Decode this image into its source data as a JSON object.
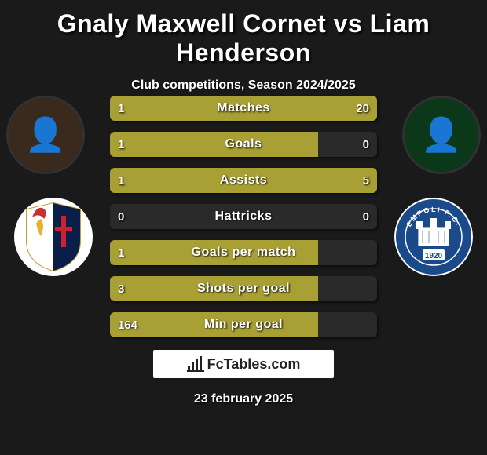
{
  "title": "Gnaly Maxwell Cornet vs Liam Henderson",
  "subtitle": "Club competitions, Season 2024/2025",
  "player_left": {
    "name": "Gnaly Maxwell Cornet",
    "portrait_bg": "#3a2a1e",
    "portrait_glyph": "👤",
    "club_crest_glyph": "genoa"
  },
  "player_right": {
    "name": "Liam Henderson",
    "portrait_bg": "#0a3818",
    "portrait_glyph": "👤",
    "club_crest_bg": "#1a4a8a",
    "club_crest_text": "EMPOLI F.C.",
    "club_crest_year": "1920"
  },
  "bar_color": "#a8a034",
  "track_color": "#2a2a2a",
  "rows": [
    {
      "label": "Matches",
      "left_val": "1",
      "right_val": "20",
      "left_pct": 4.8,
      "right_pct": 95.2
    },
    {
      "label": "Goals",
      "left_val": "1",
      "right_val": "0",
      "left_pct": 78,
      "right_pct": 0
    },
    {
      "label": "Assists",
      "left_val": "1",
      "right_val": "5",
      "left_pct": 16.7,
      "right_pct": 83.3
    },
    {
      "label": "Hattricks",
      "left_val": "0",
      "right_val": "0",
      "left_pct": 0,
      "right_pct": 0
    },
    {
      "label": "Goals per match",
      "left_val": "1",
      "right_val": "",
      "left_pct": 78,
      "right_pct": 0
    },
    {
      "label": "Shots per goal",
      "left_val": "3",
      "right_val": "",
      "left_pct": 78,
      "right_pct": 0
    },
    {
      "label": "Min per goal",
      "left_val": "164",
      "right_val": "",
      "left_pct": 78,
      "right_pct": 0
    }
  ],
  "brand": "FcTables.com",
  "date": "23 february 2025"
}
